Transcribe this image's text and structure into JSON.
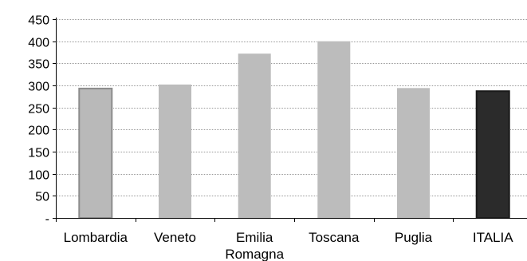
{
  "chart_data": {
    "type": "bar",
    "categories": [
      [
        "Lombardia"
      ],
      [
        "Veneto"
      ],
      [
        "Emilia",
        "Romagna"
      ],
      [
        "Toscana"
      ],
      [
        "Puglia"
      ],
      [
        "ITALIA"
      ]
    ],
    "values": [
      293,
      302,
      372,
      400,
      294,
      287
    ],
    "ylim": [
      0,
      450
    ],
    "yticks": [
      0,
      50,
      100,
      150,
      200,
      250,
      300,
      350,
      400,
      450
    ],
    "ytick_labels": [
      "-",
      "50",
      "100",
      "150",
      "200",
      "250",
      "300",
      "350",
      "400",
      "450"
    ],
    "grid": true,
    "legend": "none",
    "colors": [
      "#b9b9b9",
      "#bcbcbc",
      "#bcbcbc",
      "#bcbcbc",
      "#bcbcbc",
      "#2b2b2b"
    ],
    "bar_outline": [
      "#8c8c8c",
      "none",
      "none",
      "none",
      "none",
      "#1a1a1a"
    ]
  }
}
